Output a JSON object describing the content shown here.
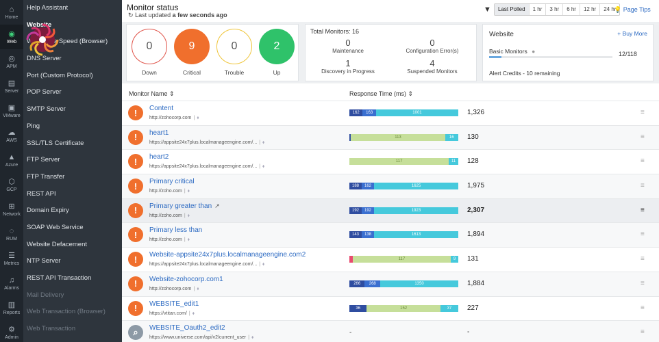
{
  "rail": [
    {
      "label": "Home",
      "icon": "home-icon",
      "glyph": "⌂"
    },
    {
      "label": "Web",
      "icon": "globe-icon",
      "glyph": "◉",
      "active": true
    },
    {
      "label": "APM",
      "icon": "apm-icon",
      "glyph": "◎"
    },
    {
      "label": "Server",
      "icon": "server-icon",
      "glyph": "▤"
    },
    {
      "label": "VMware",
      "icon": "vmware-icon",
      "glyph": "▣"
    },
    {
      "label": "AWS",
      "icon": "aws-icon",
      "glyph": "☁"
    },
    {
      "label": "Azure",
      "icon": "azure-icon",
      "glyph": "▲"
    },
    {
      "label": "GCP",
      "icon": "gcp-icon",
      "glyph": "⬡"
    },
    {
      "label": "Network",
      "icon": "network-icon",
      "glyph": "⊞"
    },
    {
      "label": "RUM",
      "icon": "rum-icon",
      "glyph": "◌"
    },
    {
      "label": "Metrics",
      "icon": "metrics-icon",
      "glyph": "☰"
    },
    {
      "label": "Alarms",
      "icon": "bell-icon",
      "glyph": "♫"
    },
    {
      "label": "Reports",
      "icon": "reports-icon",
      "glyph": "▥"
    },
    {
      "label": "Admin",
      "icon": "admin-icon",
      "glyph": "⚙"
    }
  ],
  "menu": [
    {
      "label": "Help Assistant"
    },
    {
      "label": "Website",
      "active": true
    },
    {
      "label": "Web Page Speed (Browser)"
    },
    {
      "label": "DNS Server"
    },
    {
      "label": "Port (Custom Protocol)"
    },
    {
      "label": "POP Server"
    },
    {
      "label": "SMTP Server"
    },
    {
      "label": "Ping"
    },
    {
      "label": "SSL/TLS Certificate"
    },
    {
      "label": "FTP Server"
    },
    {
      "label": "FTP Transfer"
    },
    {
      "label": "REST API"
    },
    {
      "label": "Domain Expiry"
    },
    {
      "label": "SOAP Web Service"
    },
    {
      "label": "Website Defacement"
    },
    {
      "label": "NTP Server"
    },
    {
      "label": "REST API Transaction"
    },
    {
      "label": "Mail Delivery",
      "disabled": true
    },
    {
      "label": "Web Transaction (Browser)",
      "disabled": true
    },
    {
      "label": "Web Transaction",
      "disabled": true
    }
  ],
  "header": {
    "title": "Monitor status",
    "updated_prefix": "Last updated",
    "updated_value": "a few seconds ago",
    "refresh_icon": "refresh-icon",
    "filter_icon": "filter-icon",
    "poll_options": [
      "Last Polled",
      "1 hr",
      "3 hr",
      "6 hr",
      "12 hr",
      "24 hr"
    ],
    "poll_selected": "Last Polled",
    "page_tips": "Page Tips"
  },
  "status_circles": [
    {
      "label": "Down",
      "value": "0",
      "color": "#e0544a",
      "filled": false
    },
    {
      "label": "Critical",
      "value": "9",
      "color": "#f06f2d",
      "filled": true
    },
    {
      "label": "Trouble",
      "value": "0",
      "color": "#efc53a",
      "filled": false
    },
    {
      "label": "Up",
      "value": "2",
      "color": "#2fc26a",
      "filled": true
    }
  ],
  "totals": {
    "title": "Total Monitors: 16",
    "cells": [
      {
        "value": "0",
        "label": "Maintenance"
      },
      {
        "value": "0",
        "label": "Configuration Error(s)"
      },
      {
        "value": "1",
        "label": "Discovery in Progress"
      },
      {
        "value": "4",
        "label": "Suspended Monitors"
      }
    ]
  },
  "website_card": {
    "title": "Website",
    "buy_more": "+ Buy More",
    "basic_label": "Basic Monitors",
    "basic_value": "12/118",
    "basic_fraction": 0.102,
    "alert_credits": "Alert Credits - 10 remaining"
  },
  "table": {
    "col_name": "Monitor Name",
    "col_rt": "Response Time (ms)",
    "seg_colors": {
      "dns": "#2f4da0",
      "connect": "#3a6fd0",
      "ssl": "#e84a6f",
      "first": "#c6df9a",
      "download": "#45c9dc"
    },
    "rows": [
      {
        "name": "Content",
        "url": "http://zohocorp.com",
        "rt": "1,326",
        "status": "critical",
        "segs": [
          {
            "k": "dns",
            "v": 162,
            "t": "162"
          },
          {
            "k": "connect",
            "v": 163,
            "t": "163"
          },
          {
            "k": "download",
            "v": 1001,
            "t": "1001"
          }
        ]
      },
      {
        "name": "heart1",
        "url": "https://appsite24x7plus.localmanageengine.com/...",
        "rt": "130",
        "status": "critical",
        "segs": [
          {
            "k": "dns",
            "v": 2,
            "t": ""
          },
          {
            "k": "first",
            "v": 113,
            "t": "113"
          },
          {
            "k": "download",
            "v": 16,
            "t": "16"
          }
        ]
      },
      {
        "name": "heart2",
        "url": "https://appsite24x7plus.localmanageengine.com/...",
        "rt": "128",
        "status": "critical",
        "segs": [
          {
            "k": "first",
            "v": 117,
            "t": "117"
          },
          {
            "k": "download",
            "v": 11,
            "t": "11"
          }
        ]
      },
      {
        "name": "Primary critical",
        "url": "http://zoho.com",
        "rt": "1,975",
        "status": "critical",
        "segs": [
          {
            "k": "dns",
            "v": 188,
            "t": "188"
          },
          {
            "k": "connect",
            "v": 162,
            "t": "162"
          },
          {
            "k": "download",
            "v": 1625,
            "t": "1625"
          }
        ]
      },
      {
        "name": "Primary greater than",
        "url": "http://zoho.com",
        "rt": "2,307",
        "status": "critical",
        "hover": true,
        "ext": true,
        "segs": [
          {
            "k": "dns",
            "v": 192,
            "t": "192"
          },
          {
            "k": "connect",
            "v": 192,
            "t": "192"
          },
          {
            "k": "download",
            "v": 1923,
            "t": "1923"
          }
        ]
      },
      {
        "name": "Primary less than",
        "url": "http://zoho.com",
        "rt": "1,894",
        "status": "critical",
        "segs": [
          {
            "k": "dns",
            "v": 143,
            "t": "143"
          },
          {
            "k": "connect",
            "v": 138,
            "t": "138"
          },
          {
            "k": "download",
            "v": 1613,
            "t": "1613"
          }
        ]
      },
      {
        "name": "Website-appsite24x7plus.localmanageengine.com2",
        "url": "https://appsite24x7plus.localmanageengine.com/...",
        "rt": "131",
        "status": "critical",
        "segs": [
          {
            "k": "ssl",
            "v": 4,
            "t": ""
          },
          {
            "k": "first",
            "v": 117,
            "t": "117"
          },
          {
            "k": "download",
            "v": 9,
            "t": "9"
          }
        ]
      },
      {
        "name": "Website-zohocorp.com1",
        "url": "http://zohocorp.com",
        "rt": "1,884",
        "status": "critical",
        "segs": [
          {
            "k": "dns",
            "v": 266,
            "t": "266"
          },
          {
            "k": "connect",
            "v": 268,
            "t": "268"
          },
          {
            "k": "download",
            "v": 1350,
            "t": "1350"
          }
        ]
      },
      {
        "name": "WEBSITE_edit1",
        "url": "https://vtitan.com/",
        "rt": "227",
        "status": "critical",
        "segs": [
          {
            "k": "dns",
            "v": 36,
            "t": "36"
          },
          {
            "k": "first",
            "v": 152,
            "t": "152"
          },
          {
            "k": "download",
            "v": 37,
            "t": "37"
          }
        ]
      },
      {
        "name": "WEBSITE_Oauth2_edit2",
        "url": "https://www.universe.com/api/v2/current_user",
        "rt": "-",
        "status": "discovery",
        "segs": []
      }
    ]
  },
  "menu_glyph": "≡",
  "status_glyph": "!",
  "discovery_glyph": "⌕",
  "bar_empty": "-"
}
